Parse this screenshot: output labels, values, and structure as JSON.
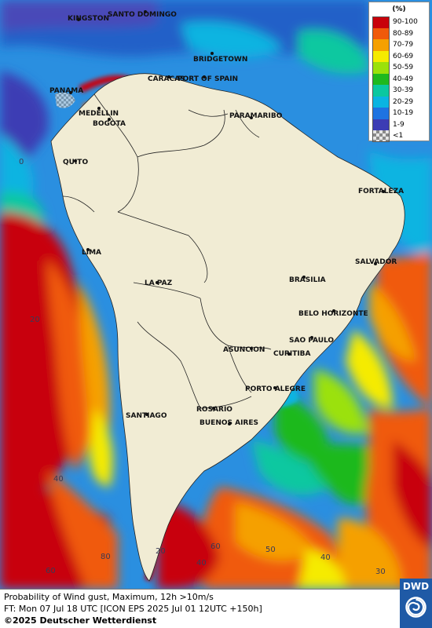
{
  "legend": {
    "unit": "(%)",
    "classes": [
      {
        "label": "90-100",
        "color": "#c8000a"
      },
      {
        "label": "80-89",
        "color": "#f05a0a"
      },
      {
        "label": "70-79",
        "color": "#f5a000"
      },
      {
        "label": "60-69",
        "color": "#f5eb00"
      },
      {
        "label": "50-59",
        "color": "#9be10a"
      },
      {
        "label": "40-49",
        "color": "#1eb91e"
      },
      {
        "label": "30-39",
        "color": "#0ac8a0"
      },
      {
        "label": "20-29",
        "color": "#0ab4e1"
      },
      {
        "label": "10-19",
        "color": "#1e73e1"
      },
      {
        "label": "1-9",
        "color": "#3c3cb4"
      },
      {
        "label": "<1",
        "color": "#c8c8c8"
      }
    ]
  },
  "cities": [
    {
      "name": "KINGSTON"
    },
    {
      "name": "SANTO DOMINGO"
    },
    {
      "name": "BRIDGETOWN"
    },
    {
      "name": "CARACAS"
    },
    {
      "name": "PORT OF SPAIN"
    },
    {
      "name": "PANAMA"
    },
    {
      "name": "MEDELLIN"
    },
    {
      "name": "BOGOTA"
    },
    {
      "name": "PARAMARIBO"
    },
    {
      "name": "QUITO"
    },
    {
      "name": "FORTALEZA"
    },
    {
      "name": "LIMA"
    },
    {
      "name": "SALVADOR"
    },
    {
      "name": "BRASILIA"
    },
    {
      "name": "LA PAZ"
    },
    {
      "name": "BELO HORIZONTE"
    },
    {
      "name": "SAO PAULO"
    },
    {
      "name": "ASUNCION"
    },
    {
      "name": "CURITIBA"
    },
    {
      "name": "PORTO ALEGRE"
    },
    {
      "name": "ROSARIO"
    },
    {
      "name": "BUENOS AIRES"
    },
    {
      "name": "SANTIAGO"
    }
  ],
  "grid_labels": [
    "0",
    "20",
    "40",
    "60",
    "80",
    "20",
    "40",
    "60",
    "50",
    "40",
    "30"
  ],
  "footer": {
    "line1": "Probability of Wind gust, Maximum, 12h >10m/s",
    "line2": "FT: Mon 07 Jul 18 UTC [ICON EPS 2025 Jul 01 12UTC +150h]",
    "line3": "©2025 Deutscher Wetterdienst"
  },
  "logo": {
    "text": "DWD"
  }
}
